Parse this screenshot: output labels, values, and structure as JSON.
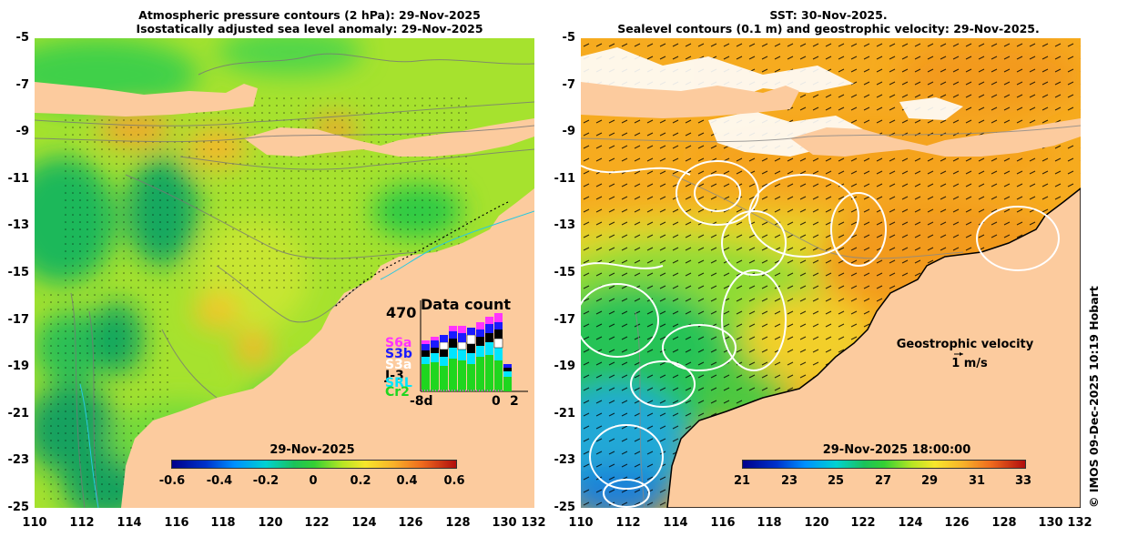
{
  "left_panel": {
    "title_line1": "Atmospheric pressure contours (2 hPa): 29-Nov-2025",
    "title_line2": "Isostatically adjusted sea level anomaly: 29-Nov-2025",
    "colorbar": {
      "title": "29-Nov-2025",
      "ticks": [
        "-0.6",
        "-0.4",
        "-0.2",
        "0",
        "0.2",
        "0.4",
        "0.6"
      ],
      "range": [
        -0.6,
        0.6
      ]
    },
    "data_count": {
      "title": "Data count",
      "max_label": "470",
      "x_labels": [
        "-8d",
        "0",
        "2"
      ],
      "satellites": [
        "S6a",
        "S3b",
        "S3a",
        "J-3",
        "SRL",
        "Cr2"
      ],
      "satellite_colors": [
        "#ff33ff",
        "#1a1aff",
        "#ffffff",
        "#000000",
        "#00e5ff",
        "#1fd61f"
      ]
    }
  },
  "right_panel": {
    "title_line1": "SST: 30-Nov-2025.",
    "title_line2": "Sealevel contours (0.1 m) and geostrophic velocity: 29-Nov-2025.",
    "colorbar": {
      "title": "29-Nov-2025 18:00:00",
      "ticks": [
        "21",
        "23",
        "25",
        "27",
        "29",
        "31",
        "33"
      ],
      "range": [
        21,
        33
      ]
    },
    "velocity_label": "Geostrophic velocity",
    "velocity_scale": "1 m/s"
  },
  "axes": {
    "y_ticks": [
      "-5",
      "-7",
      "-9",
      "-11",
      "-13",
      "-15",
      "-17",
      "-19",
      "-21",
      "-23",
      "-25"
    ],
    "x_ticks": [
      "110",
      "112",
      "114",
      "116",
      "118",
      "120",
      "122",
      "124",
      "126",
      "128",
      "130",
      "132"
    ]
  },
  "credit": "© IMOS 09-Dec-2025 10:19 Hobart",
  "colors": {
    "land": "#fccb9e",
    "anomaly_scale": "blue-green-yellow-orange-red",
    "sst_scale": "blue-green-yellow-orange-red"
  }
}
